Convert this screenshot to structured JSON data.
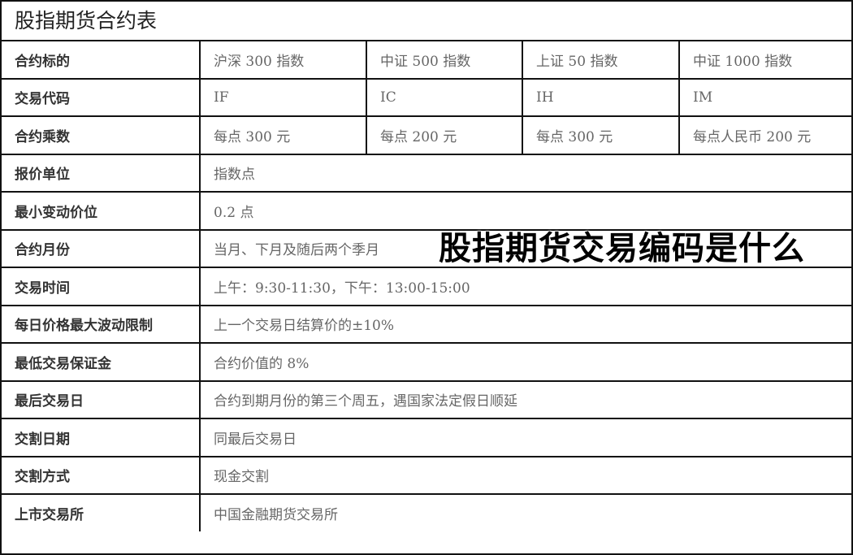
{
  "title": "股指期货合约表",
  "overlay_title": "股指期货交易编码是什么",
  "rows": [
    {
      "label": "合约标的",
      "values": [
        "沪深 300 指数",
        "中证 500 指数",
        "上证 50 指数",
        "中证 1000 指数"
      ]
    },
    {
      "label": "交易代码",
      "values": [
        "IF",
        "IC",
        "IH",
        "IM"
      ]
    },
    {
      "label": "合约乘数",
      "values": [
        "每点 300 元",
        "每点 200 元",
        "每点 300 元",
        "每点人民币 200 元"
      ]
    },
    {
      "label": "报价单位",
      "value": "指数点"
    },
    {
      "label": "最小变动价位",
      "value": "0.2 点"
    },
    {
      "label": "合约月份",
      "value": "当月、下月及随后两个季月"
    },
    {
      "label": "交易时间",
      "value": "上午：9:30-11:30，下午：13:00-15:00"
    },
    {
      "label": "每日价格最大波动限制",
      "value": "上一个交易日结算价的±10%"
    },
    {
      "label": "最低交易保证金",
      "value": "合约价值的 8%"
    },
    {
      "label": "最后交易日",
      "value": "合约到期月份的第三个周五，遇国家法定假日顺延"
    },
    {
      "label": "交割日期",
      "value": "同最后交易日"
    },
    {
      "label": "交割方式",
      "value": "现金交割"
    },
    {
      "label": "上市交易所",
      "value": "中国金融期货交易所"
    }
  ]
}
